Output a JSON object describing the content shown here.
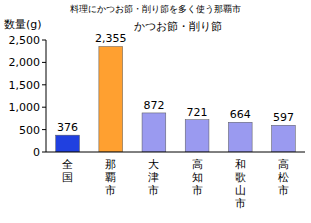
{
  "chart_data": {
    "type": "bar",
    "title": "料理にかつお節・削り節を多く使う那覇市",
    "subtitle": "かつお節・削り節",
    "y_label": "数量(g)",
    "categories": [
      "全国",
      "那覇市",
      "大津市",
      "高知市",
      "和歌山市",
      "高松市"
    ],
    "values": [
      376,
      2355,
      872,
      721,
      664,
      597
    ],
    "value_labels": [
      "376",
      "2,355",
      "872",
      "721",
      "664",
      "597"
    ],
    "colors": [
      "#2040e0",
      "#ffa030",
      "#9a9af0",
      "#9a9af0",
      "#9a9af0",
      "#9a9af0"
    ],
    "data_labels": true,
    "grid": false,
    "ylim": [
      0,
      2500
    ],
    "yticks": [
      0,
      500,
      {
        "value": 1000,
        "label": "1,000"
      },
      {
        "value": 1500,
        "label": "1,500"
      },
      {
        "value": 2000,
        "label": "2,000"
      },
      {
        "value": 2500,
        "label": "2,500"
      }
    ]
  }
}
